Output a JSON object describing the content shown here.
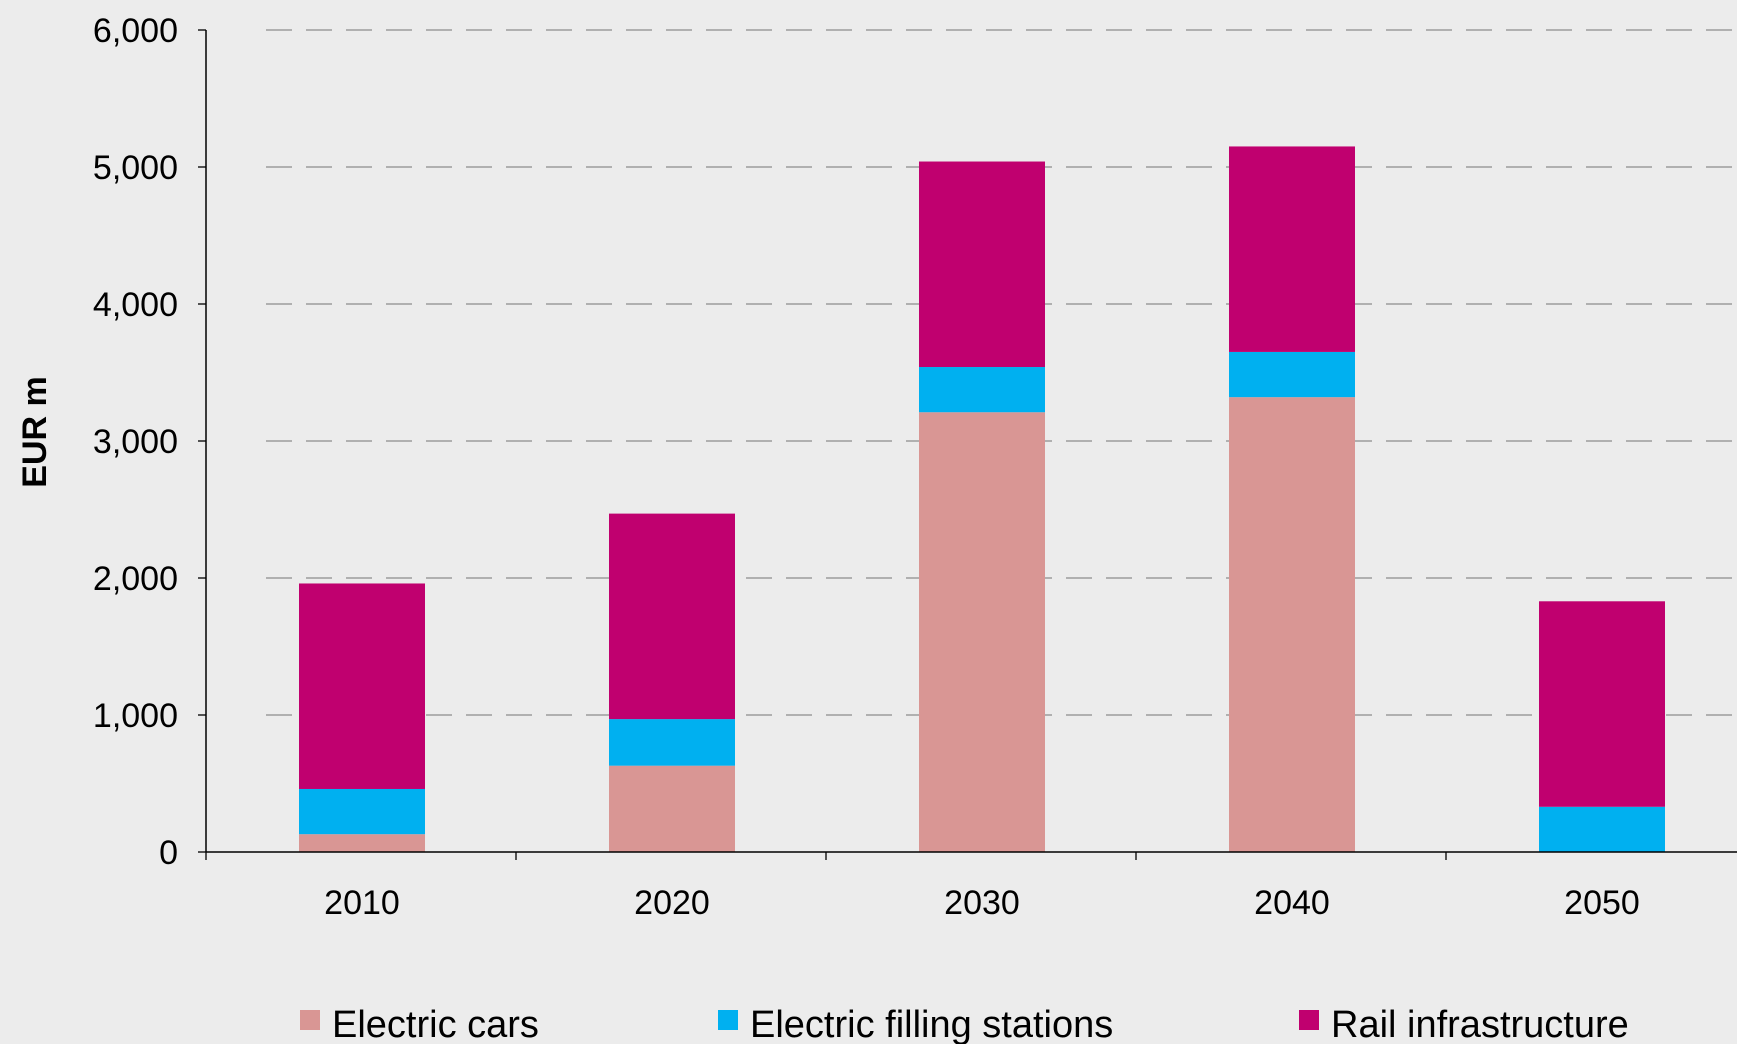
{
  "chart_data": {
    "type": "bar",
    "stacked": true,
    "title": "",
    "xlabel": "",
    "ylabel": "EUR m",
    "ylim": [
      0,
      6000
    ],
    "yticks": [
      0,
      1000,
      2000,
      3000,
      4000,
      5000,
      6000
    ],
    "ytick_labels": [
      "0",
      "1,000",
      "2,000",
      "3,000",
      "4,000",
      "5,000",
      "6,000"
    ],
    "categories": [
      "2010",
      "2020",
      "2030",
      "2040",
      "2050"
    ],
    "series": [
      {
        "name": "Electric cars",
        "color": "#d99694",
        "values": [
          130,
          630,
          3210,
          3320,
          0
        ]
      },
      {
        "name": "Electric filling stations",
        "color": "#00b0f0",
        "values": [
          330,
          340,
          330,
          330,
          330
        ]
      },
      {
        "name": "Rail infrastructure",
        "color": "#c0006f",
        "values": [
          1500,
          1500,
          1500,
          1500,
          1500
        ]
      }
    ],
    "grid": true,
    "grid_style": "dashed",
    "legend_position": "bottom"
  }
}
